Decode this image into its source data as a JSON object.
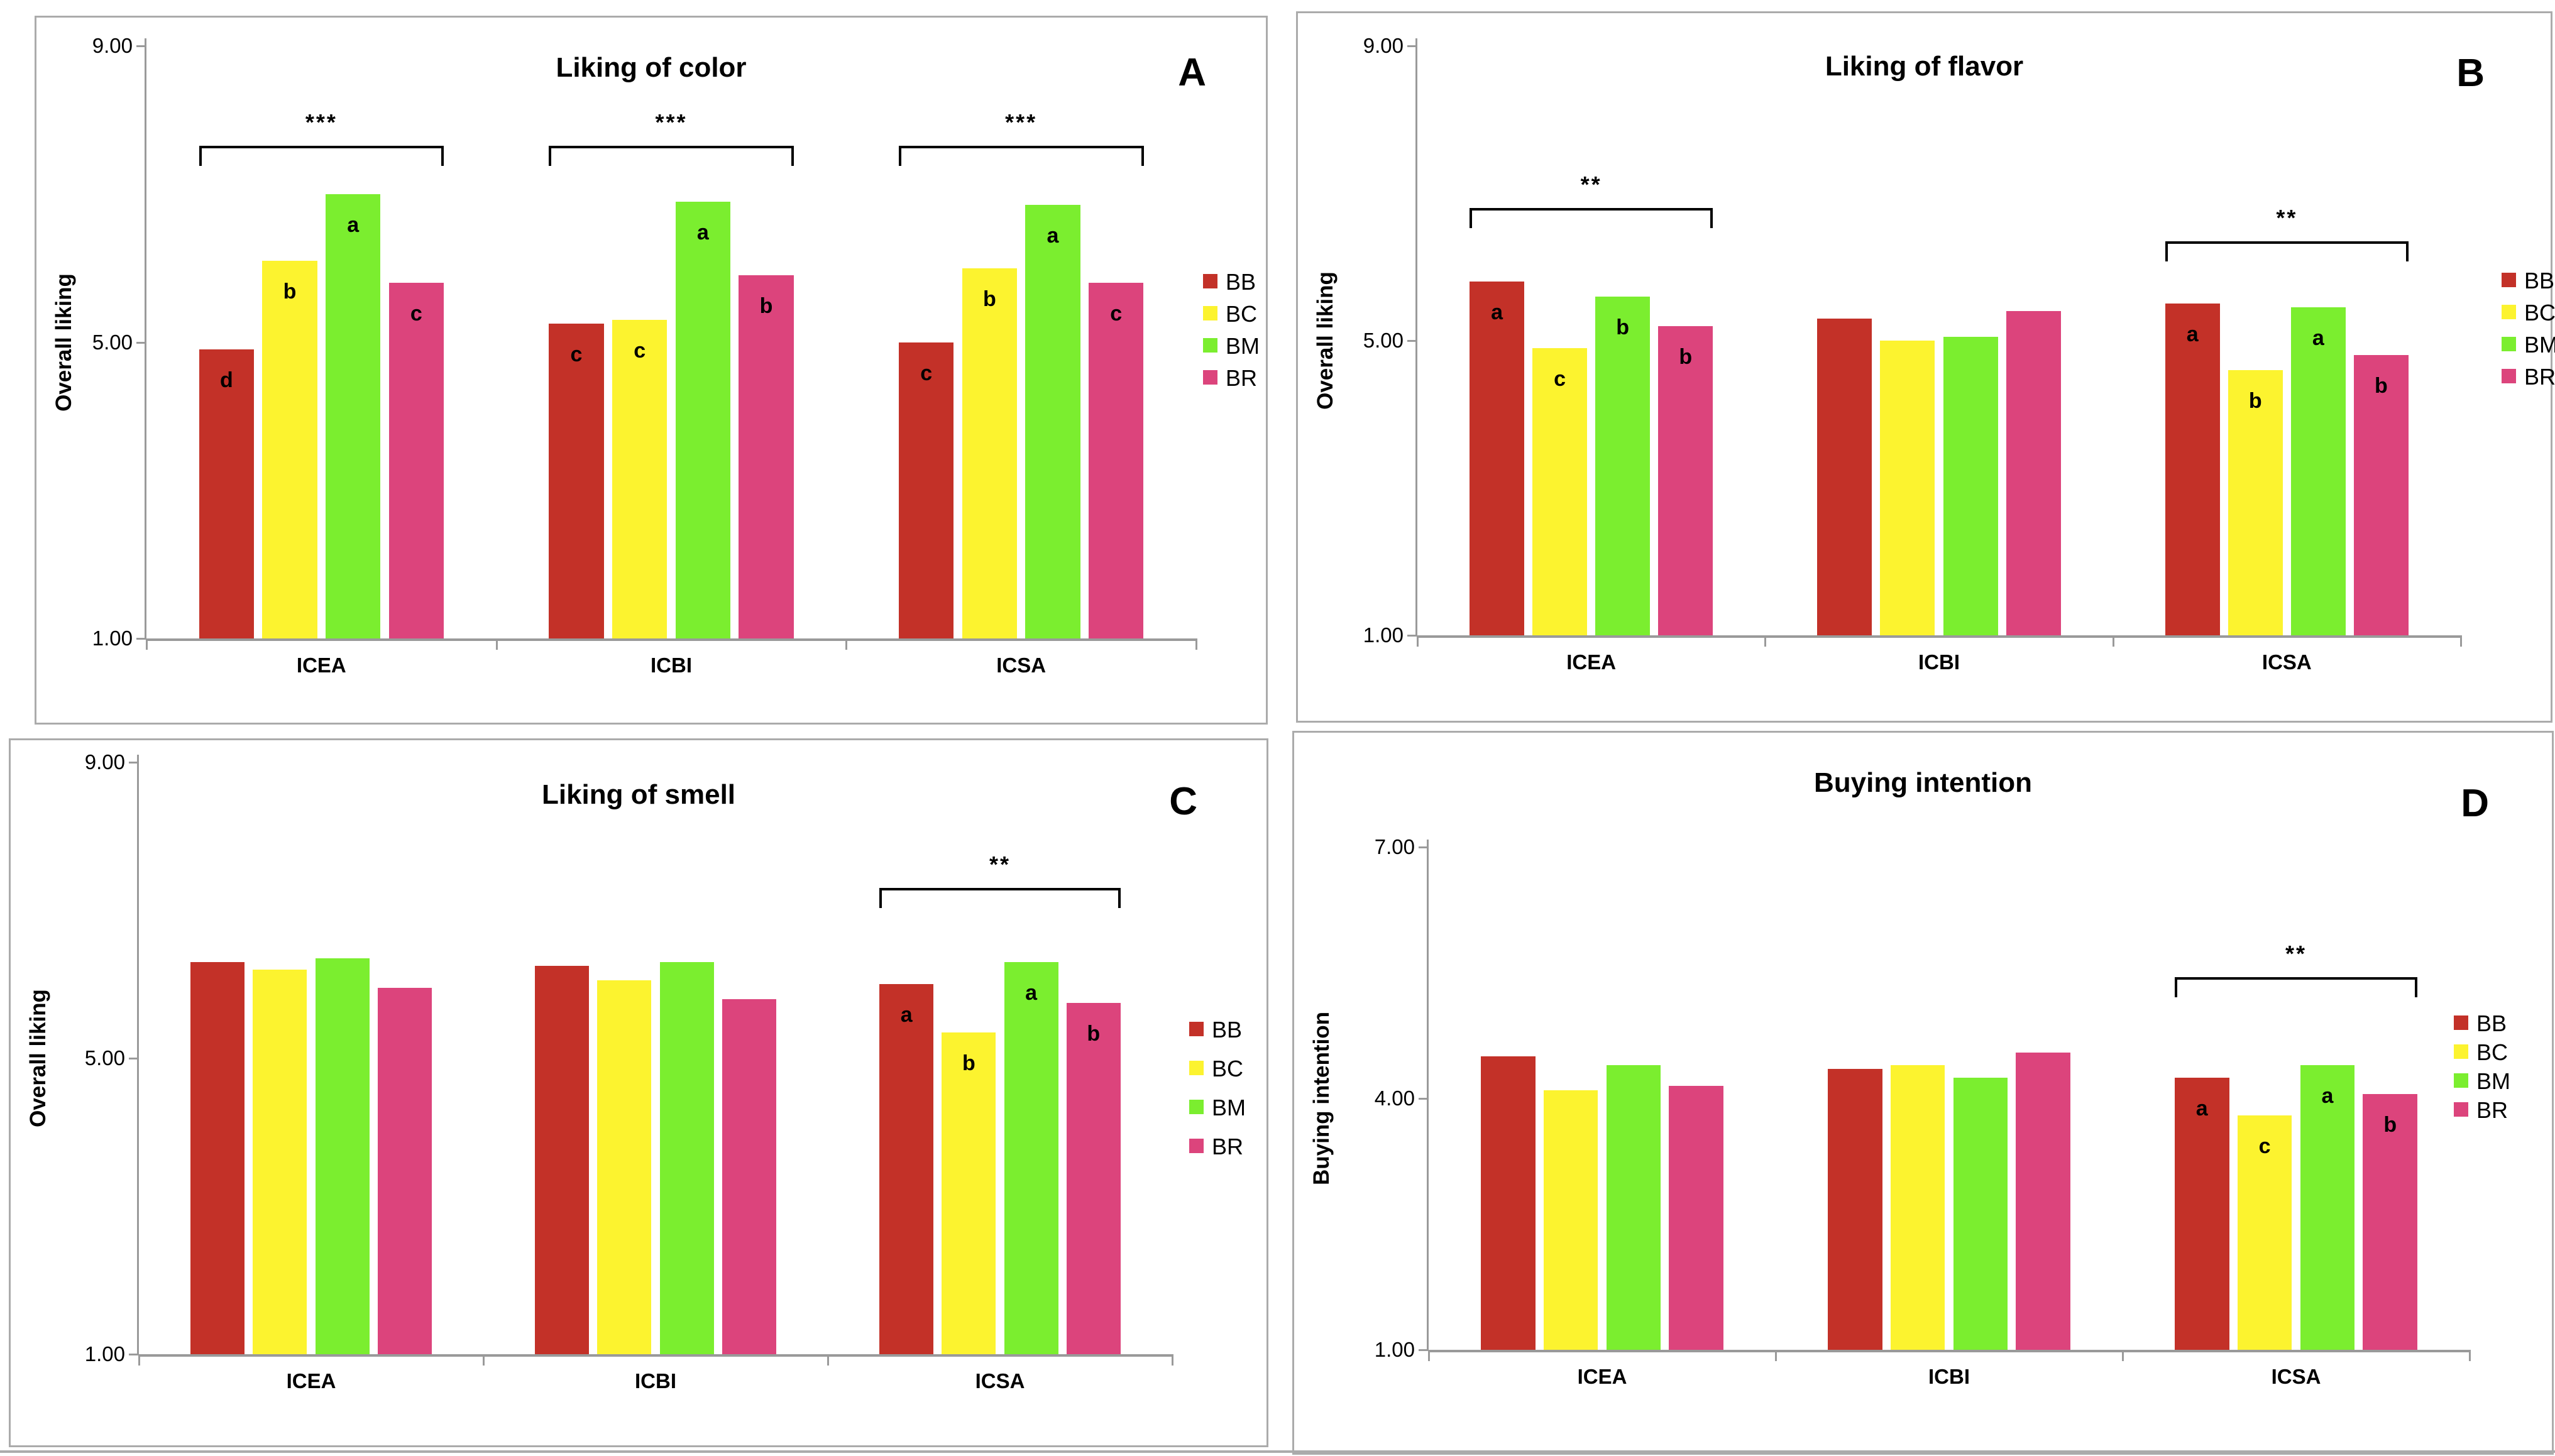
{
  "colors": {
    "series": [
      "#C33128",
      "#FCF32F",
      "#7BEE2F",
      "#DC447C"
    ],
    "axis": "#9A9A9A",
    "panel_border": "#ABABAB",
    "text": "#000000",
    "background": "#FFFFFF"
  },
  "legend": {
    "labels": [
      "BB",
      "BC",
      "BM",
      "BR"
    ]
  },
  "chart_data": [
    {
      "type": "bar",
      "panel_letter": "A",
      "title": "Liking of color",
      "ylabel": "Overall liking",
      "ylim": [
        1,
        9
      ],
      "yticks": [
        {
          "value": 9,
          "label": "9.00"
        },
        {
          "value": 5,
          "label": "5.00"
        },
        {
          "value": 1,
          "label": "1.00"
        }
      ],
      "categories": [
        "ICEA",
        "ICBI",
        "ICSA"
      ],
      "series": [
        {
          "name": "BB",
          "values": [
            4.9,
            5.25,
            5.0
          ],
          "letters": [
            "d",
            "c",
            "c"
          ]
        },
        {
          "name": "BC",
          "values": [
            6.1,
            5.3,
            6.0
          ],
          "letters": [
            "b",
            "c",
            "b"
          ]
        },
        {
          "name": "BM",
          "values": [
            7.0,
            6.9,
            6.85
          ],
          "letters": [
            "a",
            "a",
            "a"
          ]
        },
        {
          "name": "BR",
          "values": [
            5.8,
            5.9,
            5.8
          ],
          "letters": [
            "c",
            "b",
            "c"
          ]
        }
      ],
      "significance_brackets": [
        {
          "category": "ICEA",
          "label": "***",
          "y": 7.65
        },
        {
          "category": "ICBI",
          "label": "***",
          "y": 7.65
        },
        {
          "category": "ICSA",
          "label": "***",
          "y": 7.65
        }
      ],
      "legend_position": "right",
      "grid": false
    },
    {
      "type": "bar",
      "panel_letter": "B",
      "title": "Liking of flavor",
      "ylabel": "Overall liking",
      "ylim": [
        1,
        9
      ],
      "yticks": [
        {
          "value": 9,
          "label": "9.00"
        },
        {
          "value": 5,
          "label": "5.00"
        },
        {
          "value": 1,
          "label": "1.00"
        }
      ],
      "categories": [
        "ICEA",
        "ICBI",
        "ICSA"
      ],
      "series": [
        {
          "name": "BB",
          "values": [
            5.8,
            5.3,
            5.5
          ],
          "letters": [
            "a",
            "",
            "a"
          ]
        },
        {
          "name": "BC",
          "values": [
            4.9,
            5.0,
            4.6
          ],
          "letters": [
            "c",
            "",
            "b"
          ]
        },
        {
          "name": "BM",
          "values": [
            5.6,
            5.05,
            5.45
          ],
          "letters": [
            "b",
            "",
            "a"
          ]
        },
        {
          "name": "BR",
          "values": [
            5.2,
            5.4,
            4.8
          ],
          "letters": [
            "b",
            "",
            "b"
          ]
        }
      ],
      "significance_brackets": [
        {
          "category": "ICEA",
          "label": "**",
          "y": 6.8
        },
        {
          "category": "ICSA",
          "label": "**",
          "y": 6.35
        }
      ],
      "legend_position": "right",
      "grid": false
    },
    {
      "type": "bar",
      "panel_letter": "C",
      "title": "Liking of smell",
      "ylabel": "Overall liking",
      "ylim": [
        1,
        9
      ],
      "yticks": [
        {
          "value": 9,
          "label": "9.00"
        },
        {
          "value": 5,
          "label": "5.00"
        },
        {
          "value": 1,
          "label": "1.00"
        }
      ],
      "categories": [
        "ICEA",
        "ICBI",
        "ICSA"
      ],
      "series": [
        {
          "name": "BB",
          "values": [
            6.3,
            6.25,
            6.0
          ],
          "letters": [
            "",
            "",
            "a"
          ]
        },
        {
          "name": "BC",
          "values": [
            6.2,
            6.05,
            5.35
          ],
          "letters": [
            "",
            "",
            "b"
          ]
        },
        {
          "name": "BM",
          "values": [
            6.35,
            6.3,
            6.3
          ],
          "letters": [
            "",
            "",
            "a"
          ]
        },
        {
          "name": "BR",
          "values": [
            5.95,
            5.8,
            5.75
          ],
          "letters": [
            "",
            "",
            "b"
          ]
        }
      ],
      "significance_brackets": [
        {
          "category": "ICSA",
          "label": "**",
          "y": 7.3
        }
      ],
      "legend_position": "right",
      "grid": false
    },
    {
      "type": "bar",
      "panel_letter": "D",
      "title": "Buying intention",
      "ylabel": "Buying intention",
      "ylim": [
        1,
        7
      ],
      "yticks": [
        {
          "value": 7,
          "label": "7.00"
        },
        {
          "value": 4,
          "label": "4.00"
        },
        {
          "value": 1,
          "label": "1.00"
        }
      ],
      "categories": [
        "ICEA",
        "ICBI",
        "ICSA"
      ],
      "series": [
        {
          "name": "BB",
          "values": [
            4.5,
            4.35,
            4.25
          ],
          "letters": [
            "",
            "",
            "a"
          ]
        },
        {
          "name": "BC",
          "values": [
            4.1,
            4.4,
            3.8
          ],
          "letters": [
            "",
            "",
            "c"
          ]
        },
        {
          "name": "BM",
          "values": [
            4.4,
            4.25,
            4.4
          ],
          "letters": [
            "",
            "",
            "a"
          ]
        },
        {
          "name": "BR",
          "values": [
            4.15,
            4.55,
            4.05
          ],
          "letters": [
            "",
            "",
            "b"
          ]
        }
      ],
      "significance_brackets": [
        {
          "category": "ICSA",
          "label": "**",
          "y": 5.45
        }
      ],
      "legend_position": "right",
      "grid": false
    }
  ]
}
